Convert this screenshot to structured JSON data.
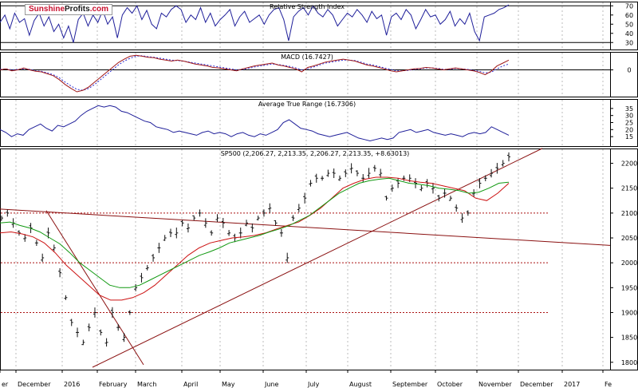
{
  "logo": {
    "part1": "Sunshine",
    "part2": "Profits",
    "part3": ".com"
  },
  "chart_data": [
    {
      "type": "line",
      "title": "Relative Strength Index",
      "ylim": [
        25,
        72
      ],
      "ticks": [
        70,
        60,
        50,
        40,
        30
      ],
      "reference_lines": [
        30,
        70
      ],
      "series": [
        {
          "values": [
            52,
            60,
            45,
            62,
            52,
            56,
            38,
            54,
            62,
            48,
            58,
            42,
            50,
            35,
            48,
            30,
            55,
            62,
            48,
            60,
            52,
            65,
            50,
            58,
            35,
            60,
            68,
            62,
            70,
            55,
            65,
            50,
            45,
            62,
            58,
            66,
            70,
            66,
            52,
            60,
            55,
            68,
            52,
            62,
            48,
            55,
            60,
            66,
            48,
            58,
            64,
            52,
            56,
            60,
            50,
            60,
            66,
            68,
            55,
            32,
            58,
            64,
            68,
            60,
            70,
            62,
            58,
            66,
            60,
            48,
            55,
            62,
            58,
            66,
            60,
            52,
            64,
            56,
            60,
            38,
            58,
            62,
            55,
            66,
            60,
            45,
            55,
            66,
            58,
            60,
            50,
            55,
            64,
            48,
            56,
            50,
            62,
            42,
            32,
            58,
            60,
            62,
            66,
            68,
            71
          ]
        }
      ]
    },
    {
      "type": "line",
      "title": "MACD (16.7427)",
      "ylim": [
        -50,
        32
      ],
      "ticks": [
        0
      ],
      "series": [
        {
          "values": [
            0,
            2,
            -2,
            0,
            4,
            0,
            -3,
            -4,
            -8,
            -12,
            -20,
            -30,
            -38,
            -45,
            -42,
            -35,
            -25,
            -15,
            -5,
            5,
            15,
            22,
            28,
            30,
            28,
            26,
            25,
            22,
            20,
            18,
            20,
            18,
            15,
            12,
            10,
            8,
            5,
            4,
            2,
            0,
            -2,
            2,
            5,
            8,
            10,
            12,
            14,
            10,
            8,
            5,
            2,
            -4,
            5,
            8,
            12,
            16,
            18,
            20,
            22,
            20,
            18,
            14,
            10,
            8,
            5,
            2,
            -2,
            -4,
            -2,
            0,
            2,
            3,
            5,
            4,
            2,
            0,
            2,
            4,
            2,
            0,
            -2,
            -5,
            -10,
            -3,
            8,
            14,
            20
          ]
        },
        {
          "values": [
            1,
            2,
            0,
            1,
            2,
            1,
            -2,
            -3,
            -6,
            -10,
            -16,
            -25,
            -33,
            -40,
            -42,
            -38,
            -30,
            -20,
            -10,
            0,
            10,
            18,
            24,
            28,
            29,
            27,
            26,
            24,
            22,
            20,
            19,
            18,
            16,
            14,
            12,
            10,
            8,
            6,
            4,
            2,
            0,
            1,
            3,
            6,
            8,
            10,
            12,
            11,
            9,
            7,
            4,
            0,
            2,
            6,
            10,
            14,
            16,
            18,
            20,
            20,
            19,
            16,
            12,
            10,
            7,
            4,
            1,
            -2,
            -2,
            -1,
            1,
            2,
            4,
            4,
            3,
            1,
            1,
            3,
            2,
            1,
            -1,
            -3,
            -6,
            -5,
            2,
            8,
            12
          ]
        }
      ]
    },
    {
      "type": "line",
      "title": "Average True Range (16.7306)",
      "ylim": [
        10,
        40
      ],
      "ticks": [
        35,
        30,
        25,
        20,
        15
      ],
      "series": [
        {
          "values": [
            20,
            18,
            15,
            17,
            16,
            20,
            22,
            24,
            21,
            19,
            23,
            22,
            24,
            26,
            30,
            33,
            35,
            37,
            36,
            37,
            36,
            33,
            32,
            30,
            28,
            26,
            25,
            22,
            21,
            20,
            18,
            19,
            18,
            17,
            16,
            18,
            19,
            17,
            18,
            17,
            15,
            17,
            18,
            16,
            15,
            17,
            16,
            18,
            20,
            25,
            27,
            24,
            21,
            20,
            19,
            17,
            16,
            15,
            16,
            17,
            18,
            16,
            14,
            13,
            12,
            13,
            14,
            13,
            14,
            18,
            19,
            20,
            18,
            19,
            20,
            18,
            17,
            16,
            17,
            16,
            15,
            17,
            18,
            17,
            18,
            22,
            20,
            18,
            16
          ]
        }
      ]
    },
    {
      "type": "line",
      "title": "SP500 (2,206.27, 2,213.35, 2,206.27, 2,213.35, +8.63013)",
      "ylim": [
        1790,
        2225
      ],
      "ticks": [
        2200,
        2150,
        2100,
        2050,
        2000,
        1950,
        1900,
        1850,
        1800
      ],
      "horizontal_levels": [
        2100,
        2000,
        1900
      ],
      "x_labels": [
        "er",
        "December",
        "2016",
        "February",
        "March",
        "April",
        "May",
        "June",
        "July",
        "August",
        "September",
        "October",
        "November",
        "December",
        "2017",
        "Fe"
      ],
      "series": [
        {
          "values": [
            2090,
            2100,
            2080,
            2060,
            2050,
            2070,
            2040,
            2010,
            2060,
            2030,
            1980,
            1930,
            1880,
            1860,
            1840,
            1870,
            1900,
            1860,
            1840,
            1900,
            1870,
            1850,
            1900,
            1950,
            1970,
            1990,
            2010,
            2030,
            2050,
            2060,
            2060,
            2080,
            2070,
            2090,
            2100,
            2080,
            2060,
            2090,
            2080,
            2060,
            2050,
            2060,
            2080,
            2070,
            2090,
            2100,
            2110,
            2080,
            2060,
            2010,
            2090,
            2110,
            2130,
            2160,
            2170,
            2170,
            2180,
            2180,
            2170,
            2180,
            2190,
            2180,
            2170,
            2180,
            2190,
            2180,
            2130,
            2150,
            2160,
            2170,
            2170,
            2160,
            2150,
            2160,
            2150,
            2130,
            2140,
            2130,
            2110,
            2090,
            2100,
            2140,
            2160,
            2170,
            2180,
            2190,
            2200,
            2213
          ]
        },
        {
          "values": [
            2080,
            2082,
            2075,
            2070,
            2062,
            2050,
            2038,
            2020,
            2000,
            1985,
            1970,
            1955,
            1950,
            1950,
            1955,
            1965,
            1975,
            1985,
            1995,
            2005,
            2015,
            2022,
            2030,
            2040,
            2045,
            2050,
            2055,
            2062,
            2068,
            2075,
            2085,
            2095,
            2110,
            2125,
            2140,
            2150,
            2160,
            2165,
            2168,
            2170,
            2165,
            2160,
            2158,
            2155,
            2150,
            2148,
            2145,
            2140,
            2142,
            2150,
            2160,
            2162
          ]
        },
        {
          "values": [
            2060,
            2062,
            2058,
            2052,
            2040,
            2020,
            1995,
            1975,
            1955,
            1935,
            1925,
            1925,
            1930,
            1940,
            1955,
            1975,
            1995,
            2015,
            2030,
            2040,
            2045,
            2050,
            2052,
            2055,
            2060,
            2068,
            2075,
            2082,
            2095,
            2110,
            2130,
            2150,
            2160,
            2168,
            2172,
            2172,
            2170,
            2165,
            2162,
            2160,
            2155,
            2150,
            2145,
            2130,
            2125,
            2140,
            2160
          ]
        }
      ]
    }
  ]
}
